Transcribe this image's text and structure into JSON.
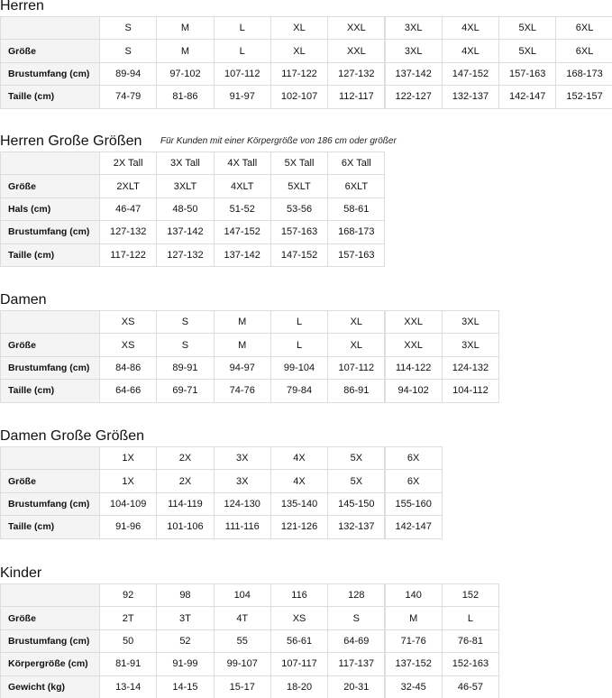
{
  "sections": [
    {
      "title": "Herren",
      "header": [
        "S",
        "M",
        "L",
        "XL",
        "XXL",
        "3XL",
        "4XL",
        "5XL",
        "6XL"
      ],
      "rows": [
        {
          "label": "Größe",
          "cells": [
            "S",
            "M",
            "L",
            "XL",
            "XXL",
            "3XL",
            "4XL",
            "5XL",
            "6XL"
          ]
        },
        {
          "label": "Brustumfang (cm)",
          "cells": [
            "89-94",
            "97-102",
            "107-112",
            "117-122",
            "127-132",
            "137-142",
            "147-152",
            "157-163",
            "168-173"
          ]
        },
        {
          "label": "Taille (cm)",
          "cells": [
            "74-79",
            "81-86",
            "91-97",
            "102-107",
            "112-117",
            "122-127",
            "132-137",
            "142-147",
            "152-157"
          ]
        }
      ]
    },
    {
      "title": "Herren Große Größen",
      "note": "Für Kunden mit einer Körpergröße von 186 cm oder größer",
      "header": [
        "2X Tall",
        "3X Tall",
        "4X Tall",
        "5X Tall",
        "6X Tall"
      ],
      "rows": [
        {
          "label": "Größe",
          "cells": [
            "2XLT",
            "3XLT",
            "4XLT",
            "5XLT",
            "6XLT"
          ]
        },
        {
          "label": "Hals (cm)",
          "cells": [
            "46-47",
            "48-50",
            "51-52",
            "53-56",
            "58-61"
          ]
        },
        {
          "label": "Brustumfang (cm)",
          "cells": [
            "127-132",
            "137-142",
            "147-152",
            "157-163",
            "168-173"
          ]
        },
        {
          "label": "Taille (cm)",
          "cells": [
            "117-122",
            "127-132",
            "137-142",
            "147-152",
            "157-163"
          ]
        }
      ]
    },
    {
      "title": "Damen",
      "header": [
        "XS",
        "S",
        "M",
        "L",
        "XL",
        "XXL",
        "3XL"
      ],
      "rows": [
        {
          "label": "Größe",
          "cells": [
            "XS",
            "S",
            "M",
            "L",
            "XL",
            "XXL",
            "3XL"
          ]
        },
        {
          "label": "Brustumfang (cm)",
          "cells": [
            "84-86",
            "89-91",
            "94-97",
            "99-104",
            "107-112",
            "114-122",
            "124-132"
          ]
        },
        {
          "label": "Taille (cm)",
          "cells": [
            "64-66",
            "69-71",
            "74-76",
            "79-84",
            "86-91",
            "94-102",
            "104-112"
          ]
        }
      ]
    },
    {
      "title": "Damen Große Größen",
      "header": [
        "1X",
        "2X",
        "3X",
        "4X",
        "5X",
        "6X"
      ],
      "rows": [
        {
          "label": "Größe",
          "cells": [
            "1X",
            "2X",
            "3X",
            "4X",
            "5X",
            "6X"
          ]
        },
        {
          "label": "Brustumfang (cm)",
          "cells": [
            "104-109",
            "114-119",
            "124-130",
            "135-140",
            "145-150",
            "155-160"
          ]
        },
        {
          "label": "Taille (cm)",
          "cells": [
            "91-96",
            "101-106",
            "111-116",
            "121-126",
            "132-137",
            "142-147"
          ]
        }
      ]
    },
    {
      "title": "Kinder",
      "header": [
        "92",
        "98",
        "104",
        "116",
        "128",
        "140",
        "152"
      ],
      "rows": [
        {
          "label": "Größe",
          "cells": [
            "2T",
            "3T",
            "4T",
            "XS",
            "S",
            "M",
            "L"
          ]
        },
        {
          "label": "Brustumfang (cm)",
          "cells": [
            "50",
            "52",
            "55",
            "56-61",
            "64-69",
            "71-76",
            "76-81"
          ]
        },
        {
          "label": "Körpergröße (cm)",
          "cells": [
            "81-91",
            "91-99",
            "99-107",
            "107-117",
            "117-137",
            "137-152",
            "152-163"
          ]
        },
        {
          "label": "Gewicht (kg)",
          "cells": [
            "13-14",
            "14-15",
            "15-17",
            "18-20",
            "20-31",
            "32-45",
            "46-57"
          ]
        }
      ]
    }
  ]
}
